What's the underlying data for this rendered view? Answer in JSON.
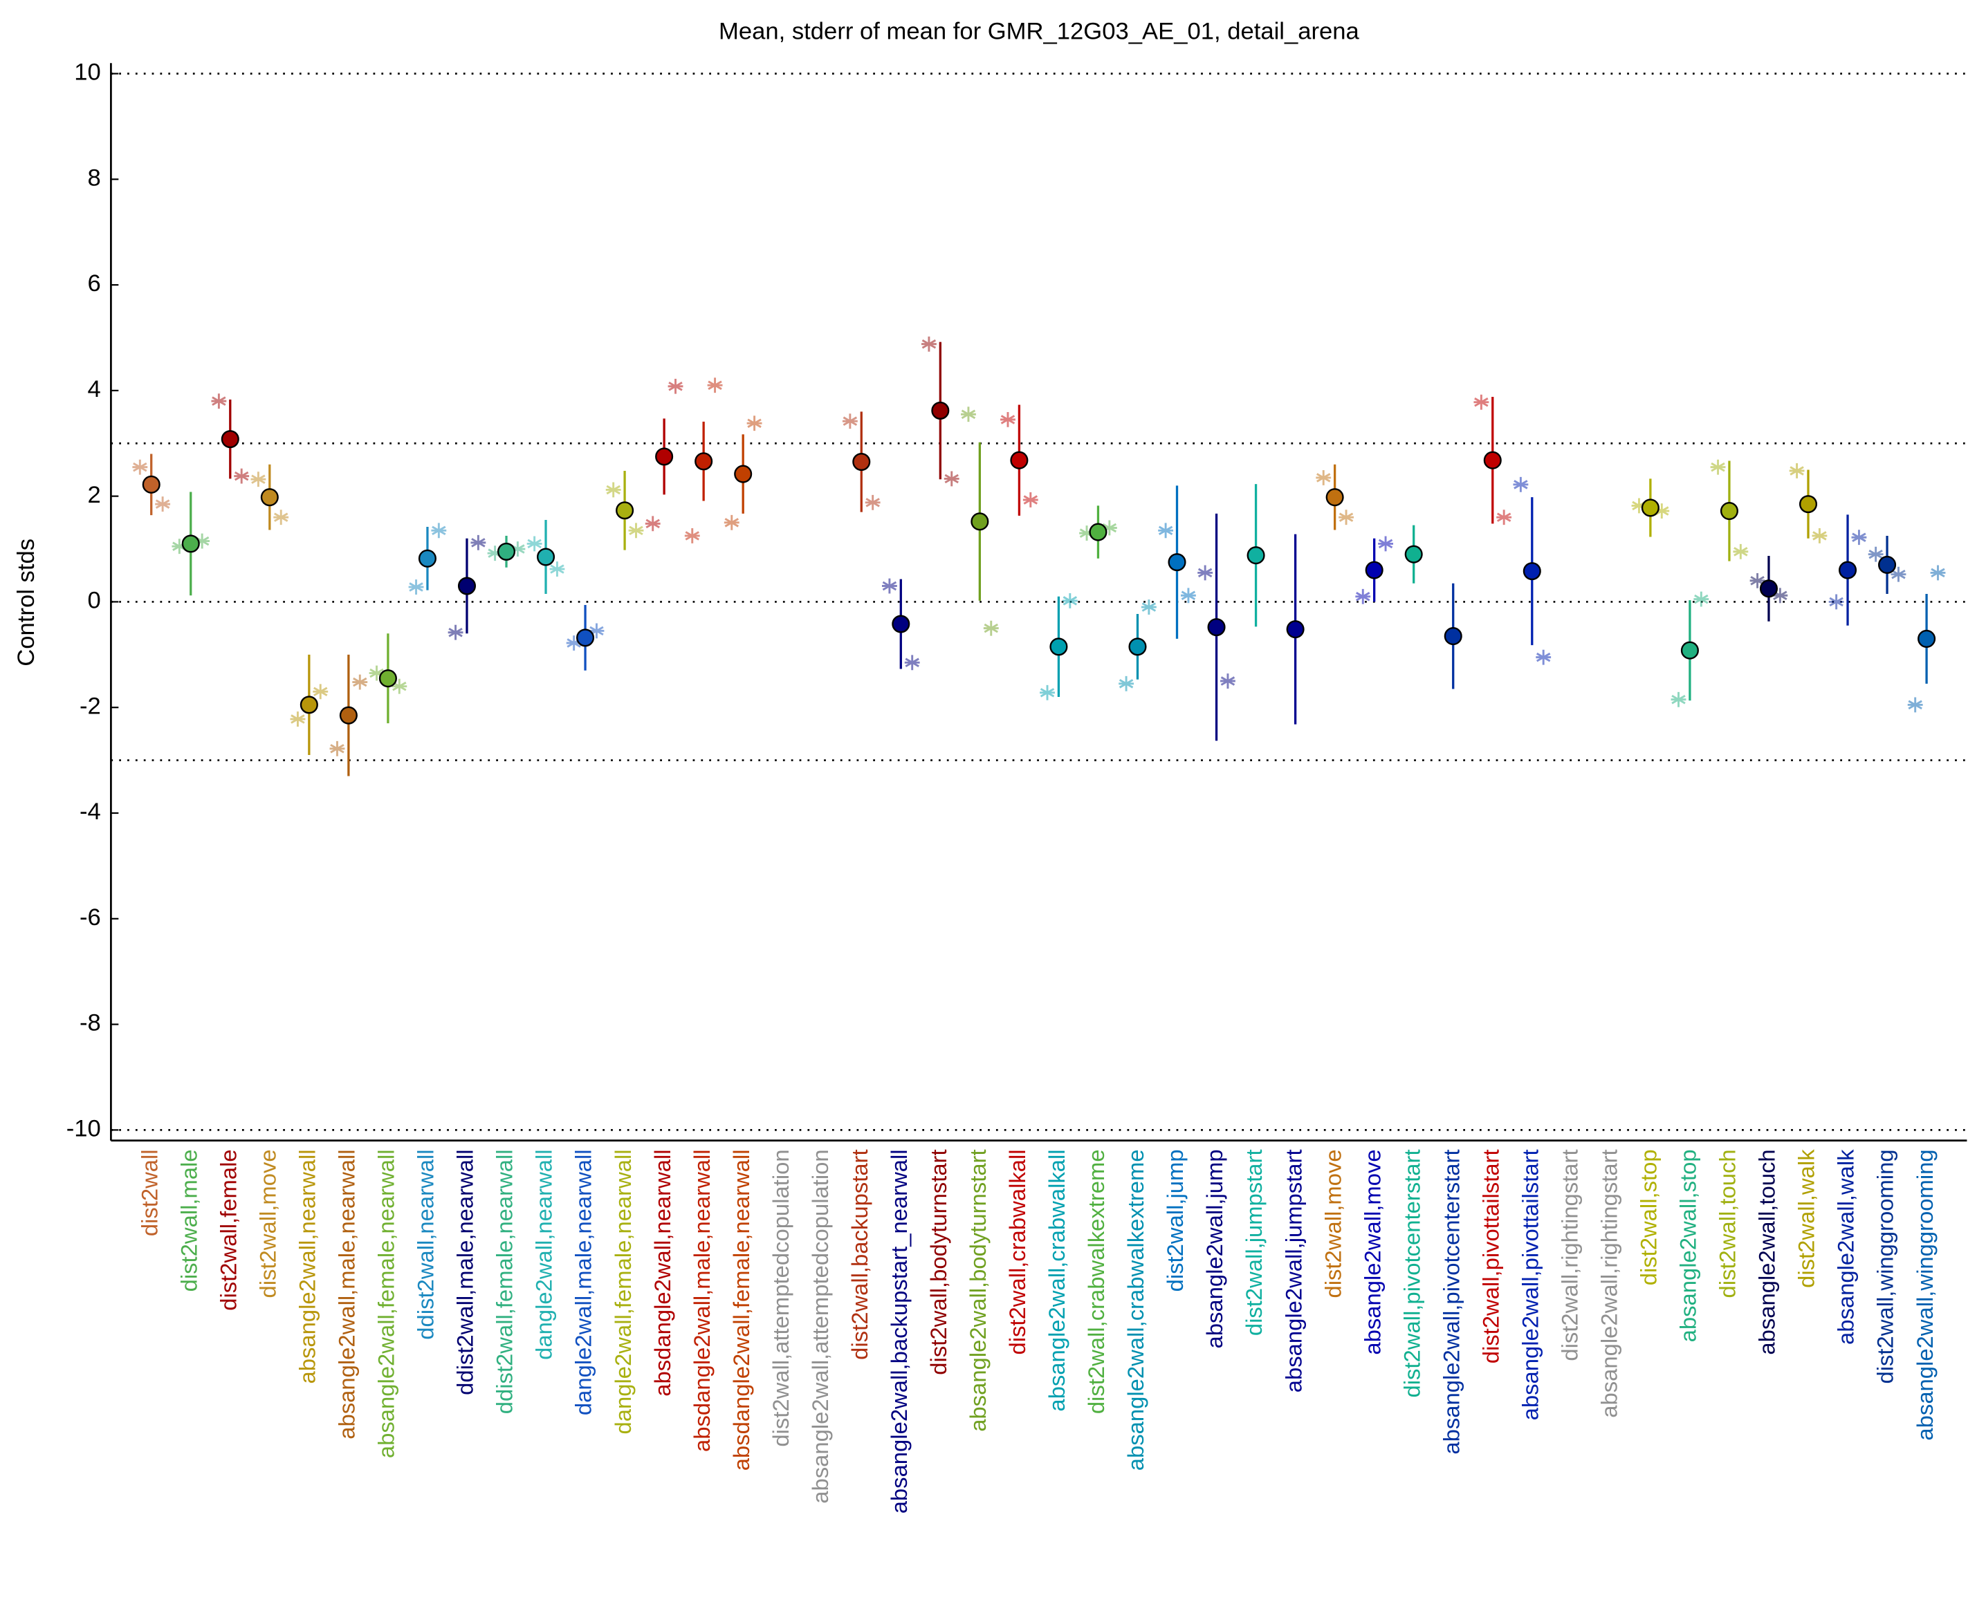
{
  "chart_data": {
    "type": "errorbar",
    "title": "Mean, stderr of mean for GMR_12G03_AE_01, detail_arena",
    "ylabel": "Control stds",
    "ylim": [
      -10.2,
      10.2
    ],
    "yticks": [
      -10,
      -8,
      -6,
      -4,
      -2,
      0,
      2,
      4,
      6,
      8,
      10
    ],
    "hlines": [
      -10,
      -3,
      0,
      3,
      10
    ],
    "categories": [
      "dist2wall",
      "dist2wall,male",
      "dist2wall,female",
      "dist2wall,move",
      "absangle2wall,nearwall",
      "absangle2wall,male,nearwall",
      "absangle2wall,female,nearwall",
      "ddist2wall,nearwall",
      "ddist2wall,male,nearwall",
      "ddist2wall,female,nearwall",
      "dangle2wall,nearwall",
      "dangle2wall,male,nearwall",
      "dangle2wall,female,nearwall",
      "absdangle2wall,nearwall",
      "absdangle2wall,male,nearwall",
      "absdangle2wall,female,nearwall",
      "dist2wall,attemptedcopulation",
      "absangle2wall,attemptedcopulation",
      "dist2wall,backupstart",
      "absangle2wall,backupstart_nearwall",
      "dist2wall,bodyturnstart",
      "absangle2wall,bodyturnstart",
      "dist2wall,crabwalkall",
      "absangle2wall,crabwalkall",
      "dist2wall,crabwalkextreme",
      "absangle2wall,crabwalkextreme",
      "dist2wall,jump",
      "absangle2wall,jump",
      "dist2wall,jumpstart",
      "absangle2wall,jumpstart",
      "dist2wall,move",
      "absangle2wall,move",
      "dist2wall,pivotcenterstart",
      "absangle2wall,pivotcenterstart",
      "dist2wall,pivottailstart",
      "absangle2wall,pivottailstart",
      "dist2wall,rightingstart",
      "absangle2wall,rightingstart",
      "dist2wall,stop",
      "absangle2wall,stop",
      "dist2wall,touch",
      "absangle2wall,touch",
      "dist2wall,walk",
      "absangle2wall,walk",
      "dist2wall,winggrooming",
      "absangle2wall,winggrooming"
    ],
    "colors": [
      "#c0622a",
      "#4cae4c",
      "#a00000",
      "#c08a20",
      "#b8960a",
      "#b06010",
      "#70b030",
      "#1a88c0",
      "#000070",
      "#30b080",
      "#20b0b0",
      "#1050c0",
      "#a8b010",
      "#b00000",
      "#c02000",
      "#c04000",
      "#909090",
      "#909090",
      "#b03010",
      "#000080",
      "#900000",
      "#70a020",
      "#c00000",
      "#00a0b0",
      "#50b040",
      "#0090b0",
      "#0070c0",
      "#000080",
      "#10b0a0",
      "#000090",
      "#c07010",
      "#0000b0",
      "#10b090",
      "#0030a0",
      "#c00000",
      "#0020b0",
      "#909090",
      "#909090",
      "#b0b000",
      "#20b080",
      "#a0b010",
      "#000050",
      "#b0a000",
      "#0020a0",
      "#003090",
      "#0060b0"
    ],
    "values": [
      2.22,
      1.1,
      3.08,
      1.98,
      -1.95,
      -2.15,
      -1.45,
      0.82,
      0.3,
      0.95,
      0.85,
      -0.68,
      1.73,
      2.75,
      2.66,
      2.42,
      null,
      null,
      2.65,
      -0.42,
      3.62,
      1.52,
      2.68,
      -0.85,
      1.32,
      -0.85,
      0.75,
      -0.48,
      0.88,
      -0.52,
      1.98,
      0.6,
      0.9,
      -0.65,
      2.68,
      0.58,
      null,
      null,
      1.78,
      -0.92,
      1.72,
      0.25,
      1.85,
      0.6,
      0.7,
      -0.7
    ],
    "errors": [
      0.58,
      0.98,
      0.75,
      0.62,
      0.95,
      1.15,
      0.85,
      0.6,
      0.9,
      0.3,
      0.7,
      0.62,
      0.75,
      0.72,
      0.75,
      0.75,
      null,
      null,
      0.95,
      0.85,
      1.3,
      1.5,
      1.05,
      0.95,
      0.5,
      0.62,
      1.45,
      2.15,
      1.35,
      1.8,
      0.62,
      0.6,
      0.55,
      1.0,
      1.2,
      1.4,
      null,
      null,
      0.55,
      0.95,
      0.95,
      0.62,
      0.65,
      1.05,
      0.55,
      0.85
    ],
    "male": [
      2.55,
      1.05,
      3.8,
      2.32,
      -2.22,
      -2.78,
      -1.35,
      0.28,
      -0.58,
      0.92,
      1.1,
      -0.78,
      2.12,
      1.48,
      1.25,
      1.5,
      null,
      null,
      3.42,
      0.3,
      4.88,
      3.55,
      3.45,
      -1.72,
      1.3,
      -1.55,
      1.35,
      0.55,
      null,
      null,
      2.35,
      0.1,
      null,
      null,
      3.78,
      2.22,
      null,
      null,
      1.82,
      -1.85,
      2.55,
      0.4,
      2.48,
      0.0,
      0.9,
      -1.95
    ],
    "female": [
      1.85,
      1.15,
      2.38,
      1.6,
      -1.7,
      -1.52,
      -1.6,
      1.35,
      1.12,
      1.0,
      0.62,
      -0.55,
      1.35,
      4.08,
      4.1,
      3.38,
      null,
      null,
      1.88,
      -1.15,
      2.33,
      -0.5,
      1.93,
      0.02,
      1.4,
      -0.1,
      0.12,
      -1.5,
      null,
      null,
      1.6,
      1.1,
      null,
      null,
      1.6,
      -1.05,
      null,
      null,
      1.72,
      0.05,
      0.95,
      0.12,
      1.25,
      1.22,
      0.52,
      0.55
    ]
  }
}
